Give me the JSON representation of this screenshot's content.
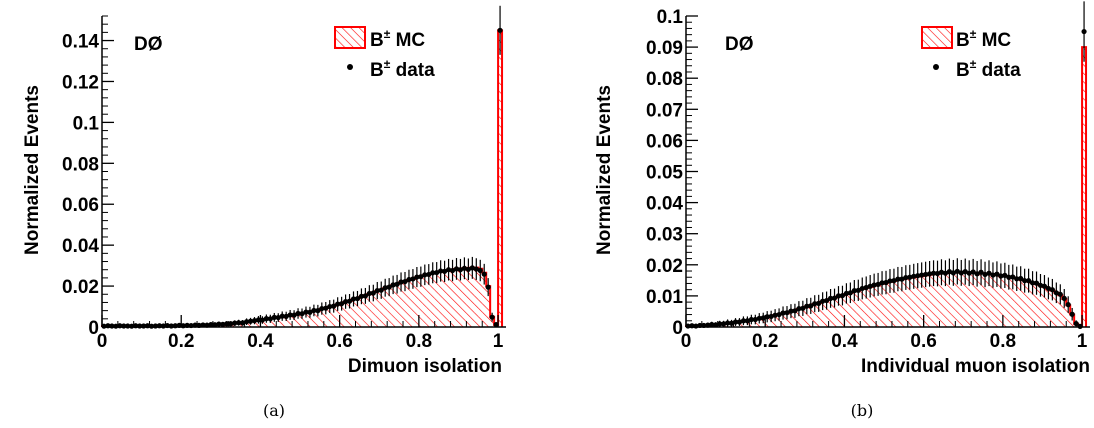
{
  "chart_data": [
    {
      "type": "histogram",
      "panel_caption": "(a)",
      "experiment_label": "DØ",
      "xlabel": "Dimuon isolation",
      "ylabel": "Normalized Events",
      "xlim": [
        0,
        1.02
      ],
      "ylim": [
        0,
        0.152
      ],
      "xticks": [
        "0",
        "0.2",
        "0.4",
        "0.6",
        "0.8",
        "1"
      ],
      "xtick_values": [
        0,
        0.2,
        0.4,
        0.6,
        0.8,
        1.0
      ],
      "yticks": [
        "0",
        "0.02",
        "0.04",
        "0.06",
        "0.08",
        "0.1",
        "0.12",
        "0.14"
      ],
      "ytick_values": [
        0,
        0.02,
        0.04,
        0.06,
        0.08,
        0.1,
        0.12,
        0.14
      ],
      "legend": {
        "position": "top-right",
        "entries": [
          {
            "label": "B",
            "sup": "±",
            "suffix": " MC",
            "style": "hatched"
          },
          {
            "label": "B",
            "sup": "±",
            "suffix": " data",
            "style": "marker"
          }
        ]
      },
      "series": [
        {
          "name": "B± MC",
          "style": "hatched-histogram",
          "bin_width": 0.01,
          "bin_start": 0.0,
          "values": [
            0.0005,
            0.0005,
            0.0005,
            0.0005,
            0.0005,
            0.0005,
            0.0005,
            0.0005,
            0.0005,
            0.0005,
            0.0005,
            0.0005,
            0.0005,
            0.0005,
            0.0005,
            0.0005,
            0.0006,
            0.0006,
            0.0006,
            0.0007,
            0.0007,
            0.0007,
            0.0008,
            0.0008,
            0.0009,
            0.0009,
            0.001,
            0.0011,
            0.0012,
            0.0013,
            0.0014,
            0.0015,
            0.0017,
            0.0018,
            0.002,
            0.0022,
            0.0024,
            0.0027,
            0.003,
            0.0033,
            0.0036,
            0.0039,
            0.0042,
            0.0045,
            0.0048,
            0.0051,
            0.0054,
            0.0057,
            0.006,
            0.0064,
            0.0067,
            0.0071,
            0.0075,
            0.0079,
            0.0083,
            0.0088,
            0.0093,
            0.0098,
            0.0104,
            0.011,
            0.0116,
            0.0122,
            0.0128,
            0.0135,
            0.0141,
            0.0148,
            0.0155,
            0.0162,
            0.0169,
            0.0176,
            0.0183,
            0.019,
            0.0197,
            0.0204,
            0.0211,
            0.0218,
            0.0224,
            0.023,
            0.0236,
            0.0242,
            0.0248,
            0.0253,
            0.0258,
            0.0263,
            0.0268,
            0.0272,
            0.0275,
            0.0278,
            0.0281,
            0.0284,
            0.0286,
            0.0288,
            0.0289,
            0.029,
            0.029,
            0.0285,
            0.0265,
            0.02,
            0.005,
            0.001,
            0.145
          ]
        },
        {
          "name": "B± data",
          "style": "points-with-errors",
          "bin_width": 0.01,
          "bin_start": 0.0,
          "values": [
            0.0004,
            0.0006,
            0.0005,
            0.0004,
            0.0006,
            0.0005,
            0.0005,
            0.0004,
            0.0006,
            0.0005,
            0.0005,
            0.0006,
            0.0004,
            0.0005,
            0.0006,
            0.0005,
            0.0007,
            0.0005,
            0.0006,
            0.0008,
            0.0006,
            0.0008,
            0.0007,
            0.0009,
            0.0008,
            0.001,
            0.0009,
            0.0012,
            0.0011,
            0.0014,
            0.0013,
            0.0016,
            0.0016,
            0.0019,
            0.0021,
            0.002,
            0.0026,
            0.0028,
            0.0031,
            0.0035,
            0.0034,
            0.0041,
            0.004,
            0.0047,
            0.0046,
            0.0053,
            0.0052,
            0.0059,
            0.0058,
            0.0066,
            0.0065,
            0.0073,
            0.0072,
            0.0081,
            0.008,
            0.009,
            0.0092,
            0.01,
            0.0102,
            0.0112,
            0.0114,
            0.0124,
            0.0126,
            0.0137,
            0.0139,
            0.015,
            0.0152,
            0.0164,
            0.0166,
            0.0178,
            0.018,
            0.0192,
            0.0195,
            0.0206,
            0.0209,
            0.022,
            0.0222,
            0.0232,
            0.0235,
            0.0244,
            0.0246,
            0.0255,
            0.0257,
            0.0265,
            0.0266,
            0.0274,
            0.0272,
            0.028,
            0.0276,
            0.0284,
            0.028,
            0.0287,
            0.0282,
            0.0289,
            0.0283,
            0.0276,
            0.0258,
            0.0195,
            0.0048,
            0.0012,
            0.145
          ]
        }
      ]
    },
    {
      "type": "histogram",
      "panel_caption": "(b)",
      "experiment_label": "DØ",
      "xlabel": "Individual muon isolation",
      "ylabel": "Normalized Events",
      "xlim": [
        0,
        1.02
      ],
      "ylim": [
        0,
        0.1
      ],
      "xticks": [
        "0",
        "0.2",
        "0.4",
        "0.6",
        "0.8",
        "1"
      ],
      "xtick_values": [
        0,
        0.2,
        0.4,
        0.6,
        0.8,
        1.0
      ],
      "yticks": [
        "0",
        "0.01",
        "0.02",
        "0.03",
        "0.04",
        "0.05",
        "0.06",
        "0.07",
        "0.08",
        "0.09",
        "0.1"
      ],
      "ytick_values": [
        0,
        0.01,
        0.02,
        0.03,
        0.04,
        0.05,
        0.06,
        0.07,
        0.08,
        0.09,
        0.1
      ],
      "legend": {
        "position": "top-right",
        "entries": [
          {
            "label": "B",
            "sup": "±",
            "suffix": " MC",
            "style": "hatched"
          },
          {
            "label": "B",
            "sup": "±",
            "suffix": " data",
            "style": "marker"
          }
        ]
      },
      "series": [
        {
          "name": "B± MC",
          "style": "hatched-histogram",
          "bin_width": 0.01,
          "bin_start": 0.0,
          "values": [
            0.0003,
            0.0003,
            0.0004,
            0.0004,
            0.0005,
            0.0006,
            0.0007,
            0.0008,
            0.0009,
            0.001,
            0.0012,
            0.0013,
            0.0015,
            0.0017,
            0.0019,
            0.0021,
            0.0023,
            0.0025,
            0.0027,
            0.003,
            0.0032,
            0.0035,
            0.0038,
            0.0041,
            0.0044,
            0.0047,
            0.005,
            0.0054,
            0.0058,
            0.0062,
            0.0066,
            0.007,
            0.0074,
            0.0078,
            0.0082,
            0.0086,
            0.009,
            0.0094,
            0.0098,
            0.0102,
            0.0106,
            0.011,
            0.0114,
            0.0118,
            0.0122,
            0.0126,
            0.0129,
            0.0133,
            0.0136,
            0.0139,
            0.0142,
            0.0145,
            0.0148,
            0.0151,
            0.0153,
            0.0156,
            0.0158,
            0.016,
            0.0162,
            0.0164,
            0.0166,
            0.0168,
            0.017,
            0.0171,
            0.0172,
            0.0173,
            0.0174,
            0.0175,
            0.0175,
            0.0175,
            0.0175,
            0.0175,
            0.0175,
            0.0174,
            0.0173,
            0.0172,
            0.0171,
            0.017,
            0.0168,
            0.0166,
            0.0164,
            0.0162,
            0.0159,
            0.0156,
            0.0153,
            0.015,
            0.0146,
            0.0142,
            0.0138,
            0.0134,
            0.0129,
            0.0123,
            0.0117,
            0.011,
            0.0102,
            0.009,
            0.007,
            0.004,
            0.001,
            0.0002,
            0.09
          ]
        },
        {
          "name": "B± data",
          "style": "points-with-errors",
          "bin_width": 0.01,
          "bin_start": 0.0,
          "values": [
            0.0003,
            0.0004,
            0.0003,
            0.0005,
            0.0005,
            0.0006,
            0.0008,
            0.0007,
            0.001,
            0.001,
            0.0013,
            0.0012,
            0.0016,
            0.0016,
            0.002,
            0.002,
            0.0024,
            0.0024,
            0.0028,
            0.0029,
            0.0033,
            0.0034,
            0.0038,
            0.004,
            0.0045,
            0.0046,
            0.0051,
            0.0052,
            0.0059,
            0.006,
            0.0067,
            0.0068,
            0.0075,
            0.0076,
            0.0083,
            0.0085,
            0.0092,
            0.0093,
            0.01,
            0.0101,
            0.0108,
            0.011,
            0.0117,
            0.0118,
            0.0124,
            0.0127,
            0.0131,
            0.0135,
            0.0137,
            0.0142,
            0.0143,
            0.0148,
            0.0149,
            0.0154,
            0.0154,
            0.0159,
            0.016,
            0.0163,
            0.0165,
            0.0167,
            0.0169,
            0.0171,
            0.0173,
            0.0172,
            0.0176,
            0.0173,
            0.0178,
            0.0174,
            0.0179,
            0.0174,
            0.0178,
            0.0173,
            0.0177,
            0.0171,
            0.0176,
            0.0169,
            0.0173,
            0.0167,
            0.017,
            0.0164,
            0.0166,
            0.016,
            0.0161,
            0.0155,
            0.0156,
            0.0149,
            0.0149,
            0.0142,
            0.0141,
            0.0134,
            0.0131,
            0.0124,
            0.012,
            0.011,
            0.0105,
            0.0092,
            0.0072,
            0.0041,
            0.0011,
            0.0002,
            0.095
          ]
        }
      ]
    }
  ],
  "colors": {
    "mc_line": "#ff0000",
    "mc_hatch": "#ff0000",
    "data_marker": "#000000",
    "axis": "#000000"
  }
}
